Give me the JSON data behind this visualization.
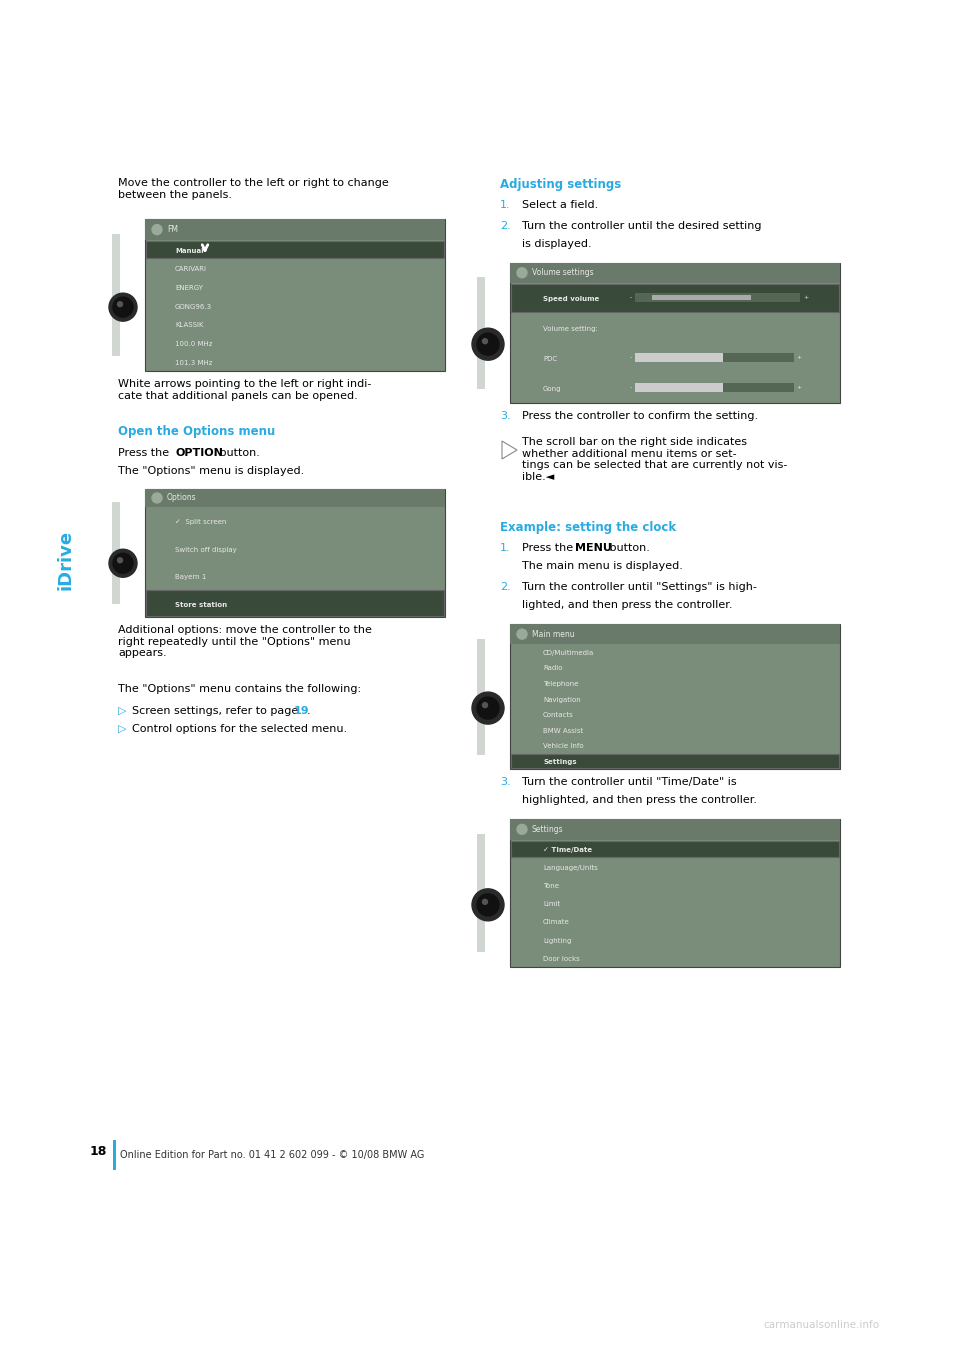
{
  "page_bg": "#ffffff",
  "page_width": 9.6,
  "page_height": 13.58,
  "dpi": 100,
  "sidebar_color": "#29abe2",
  "sidebar_text": "iDrive",
  "page_number": "18",
  "footer_text": "Online Edition for Part no. 01 41 2 602 099 - © 10/08 BMW AG",
  "heading_color": "#29abe2",
  "screen_bg": "#7a8c7a",
  "screen_hdr": "#6a7a6a",
  "screen_hi": "#3a4a3a",
  "screen_text": "#e8e8e8",
  "knob_outer": "#2a2a2a",
  "knob_inner": "#111111"
}
